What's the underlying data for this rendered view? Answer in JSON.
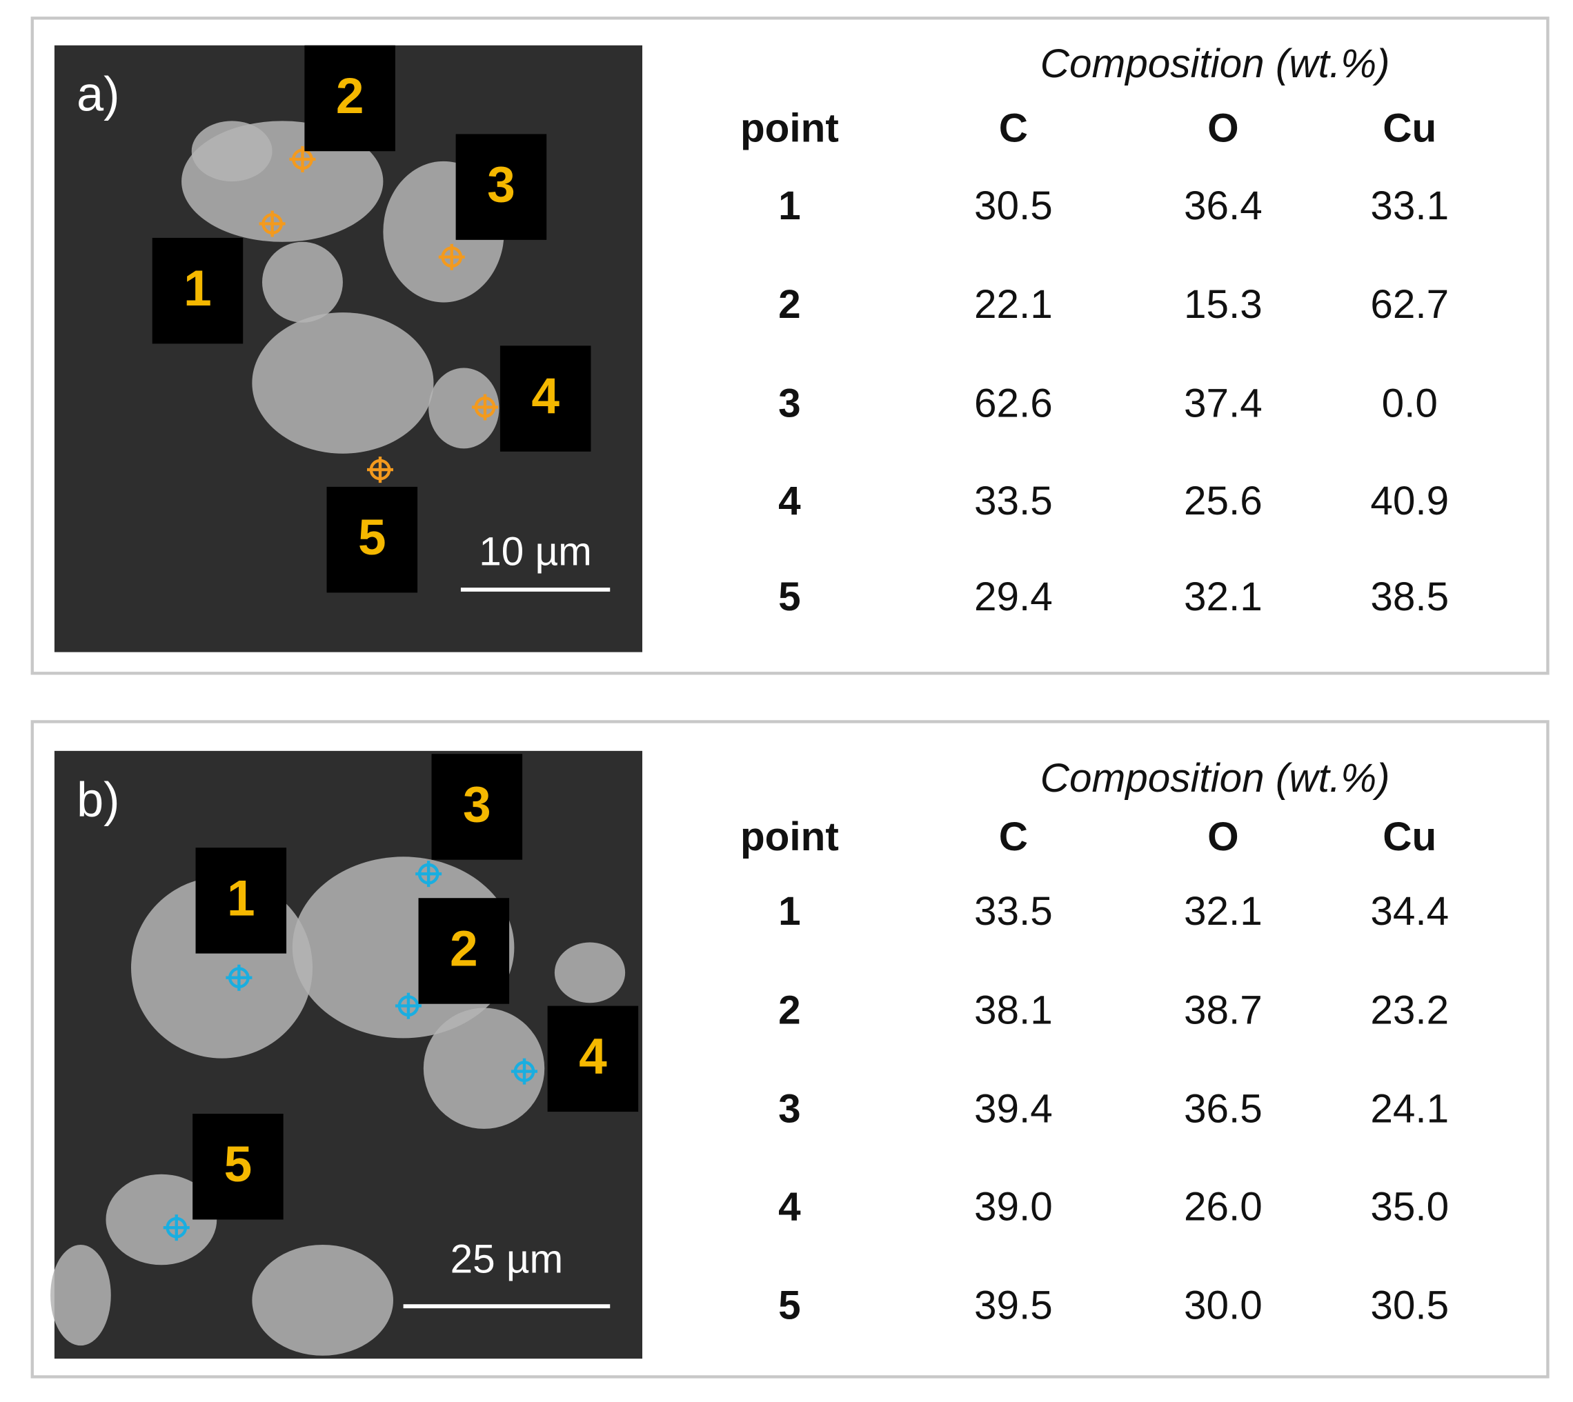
{
  "panels": [
    {
      "label": "a)",
      "scale_bar": "10 µm",
      "points": [
        "1",
        "2",
        "3",
        "4",
        "5"
      ],
      "table": {
        "title": "Composition (wt.%)",
        "columns": [
          "point",
          "C",
          "O",
          "Cu"
        ],
        "rows": [
          [
            "1",
            "30.5",
            "36.4",
            "33.1"
          ],
          [
            "2",
            "22.1",
            "15.3",
            "62.7"
          ],
          [
            "3",
            "62.6",
            "37.4",
            "0.0"
          ],
          [
            "4",
            "33.5",
            "25.6",
            "40.9"
          ],
          [
            "5",
            "29.4",
            "32.1",
            "38.5"
          ]
        ]
      }
    },
    {
      "label": "b)",
      "scale_bar": "25 µm",
      "points": [
        "1",
        "2",
        "3",
        "4",
        "5"
      ],
      "table": {
        "title": "Composition (wt.%)",
        "columns": [
          "point",
          "C",
          "O",
          "Cu"
        ],
        "rows": [
          [
            "1",
            "33.5",
            "32.1",
            "34.4"
          ],
          [
            "2",
            "38.1",
            "38.7",
            "23.2"
          ],
          [
            "3",
            "39.4",
            "36.5",
            "24.1"
          ],
          [
            "4",
            "39.0",
            "26.0",
            "35.0"
          ],
          [
            "5",
            "39.5",
            "30.0",
            "30.5"
          ]
        ]
      }
    }
  ]
}
